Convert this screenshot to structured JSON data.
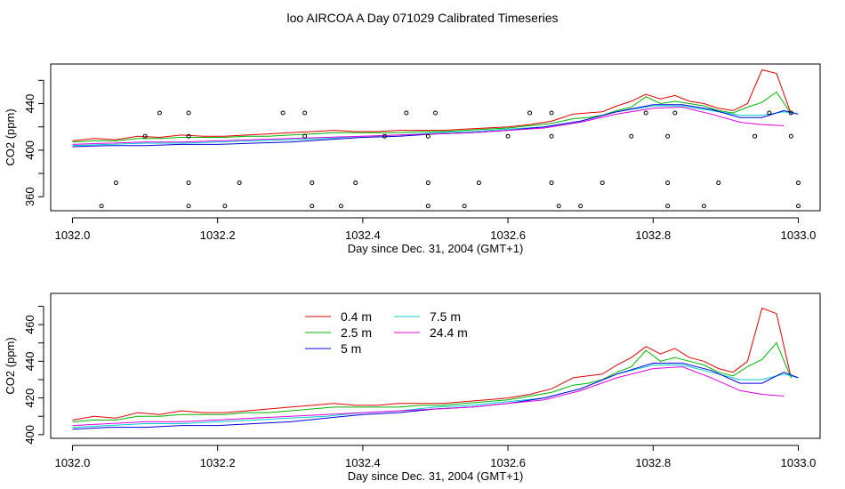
{
  "title": "loo AIRCOA A  Day 071029  Calibrated Timeseries",
  "colors": {
    "s0_4": "#e00000",
    "s2_5": "#00b400",
    "s5": "#0000dd",
    "s7_5": "#00cccc",
    "s24_4": "#dd00dd",
    "frame": "#000000"
  },
  "chart_data": [
    {
      "type": "scatter+line",
      "title": "",
      "xlabel": "Day since Dec. 31, 2004 (GMT+1)",
      "ylabel": "CO2 (ppm)",
      "xlim": [
        1031.97,
        1033.03
      ],
      "ylim": [
        348,
        474
      ],
      "xticks": [
        1032.0,
        1032.2,
        1032.4,
        1032.6,
        1032.8,
        1033.0
      ],
      "xtick_labels": [
        "1032.0",
        "1032.2",
        "1032.4",
        "1032.6",
        "1032.8",
        "1033.0"
      ],
      "yticks": [
        360,
        380,
        400,
        420,
        440,
        460
      ],
      "ytick_labels": [
        "360",
        "",
        "400",
        "",
        "440",
        ""
      ],
      "points": [
        [
          1032.04,
          352
        ],
        [
          1032.06,
          372
        ],
        [
          1032.1,
          412
        ],
        [
          1032.12,
          432
        ],
        [
          1032.16,
          352
        ],
        [
          1032.16,
          372
        ],
        [
          1032.16,
          412
        ],
        [
          1032.16,
          432
        ],
        [
          1032.21,
          352
        ],
        [
          1032.23,
          372
        ],
        [
          1032.29,
          432
        ],
        [
          1032.32,
          432
        ],
        [
          1032.32,
          412
        ],
        [
          1032.33,
          372
        ],
        [
          1032.33,
          352
        ],
        [
          1032.37,
          352
        ],
        [
          1032.39,
          372
        ],
        [
          1032.43,
          412
        ],
        [
          1032.46,
          432
        ],
        [
          1032.49,
          352
        ],
        [
          1032.49,
          372
        ],
        [
          1032.49,
          412
        ],
        [
          1032.5,
          432
        ],
        [
          1032.54,
          352
        ],
        [
          1032.56,
          372
        ],
        [
          1032.6,
          412
        ],
        [
          1032.63,
          432
        ],
        [
          1032.66,
          432
        ],
        [
          1032.66,
          412
        ],
        [
          1032.66,
          372
        ],
        [
          1032.67,
          352
        ],
        [
          1032.7,
          352
        ],
        [
          1032.73,
          372
        ],
        [
          1032.77,
          412
        ],
        [
          1032.79,
          432
        ],
        [
          1032.82,
          352
        ],
        [
          1032.82,
          372
        ],
        [
          1032.82,
          412
        ],
        [
          1032.83,
          432
        ],
        [
          1032.87,
          352
        ],
        [
          1032.89,
          372
        ],
        [
          1032.94,
          412
        ],
        [
          1032.96,
          432
        ],
        [
          1032.99,
          432
        ],
        [
          1032.99,
          412
        ],
        [
          1033.0,
          372
        ],
        [
          1033.0,
          352
        ]
      ],
      "series": [
        {
          "color_key": "s0_4",
          "x": [
            1032.0,
            1032.03,
            1032.06,
            1032.09,
            1032.12,
            1032.15,
            1032.18,
            1032.21,
            1032.24,
            1032.27,
            1032.3,
            1032.33,
            1032.36,
            1032.39,
            1032.42,
            1032.45,
            1032.48,
            1032.51,
            1032.54,
            1032.57,
            1032.6,
            1032.63,
            1032.66,
            1032.69,
            1032.71,
            1032.73,
            1032.75,
            1032.77,
            1032.79,
            1032.81,
            1032.83,
            1032.85,
            1032.87,
            1032.89,
            1032.91,
            1032.93,
            1032.95,
            1032.97,
            1032.99
          ],
          "y": [
            408,
            410,
            409,
            412,
            411,
            413,
            412,
            412,
            413,
            414,
            415,
            416,
            417,
            416,
            416,
            417,
            417,
            417,
            418,
            419,
            420,
            422,
            425,
            431,
            432,
            433,
            438,
            442,
            448,
            444,
            447,
            442,
            440,
            436,
            434,
            440,
            469,
            466,
            431
          ]
        },
        {
          "color_key": "s2_5",
          "x": [
            1032.0,
            1032.03,
            1032.06,
            1032.09,
            1032.12,
            1032.15,
            1032.18,
            1032.21,
            1032.24,
            1032.27,
            1032.3,
            1032.33,
            1032.36,
            1032.39,
            1032.42,
            1032.45,
            1032.48,
            1032.51,
            1032.54,
            1032.57,
            1032.6,
            1032.63,
            1032.66,
            1032.69,
            1032.71,
            1032.73,
            1032.75,
            1032.77,
            1032.79,
            1032.81,
            1032.83,
            1032.85,
            1032.87,
            1032.89,
            1032.91,
            1032.93,
            1032.95,
            1032.97,
            1032.99
          ],
          "y": [
            407,
            408,
            408,
            410,
            410,
            411,
            411,
            411,
            412,
            412,
            413,
            414,
            415,
            415,
            415,
            415,
            416,
            416,
            417,
            418,
            419,
            421,
            423,
            427,
            428,
            430,
            434,
            437,
            446,
            440,
            442,
            440,
            438,
            434,
            432,
            437,
            441,
            450,
            431
          ]
        },
        {
          "color_key": "s7_5",
          "x": [
            1032.0,
            1032.05,
            1032.1,
            1032.15,
            1032.2,
            1032.25,
            1032.3,
            1032.35,
            1032.4,
            1032.45,
            1032.5,
            1032.55,
            1032.6,
            1032.65,
            1032.7,
            1032.75,
            1032.8,
            1032.84,
            1032.88,
            1032.92,
            1032.95,
            1032.98,
            1033.0
          ],
          "y": [
            404,
            405,
            406,
            406,
            407,
            408,
            409,
            410,
            412,
            413,
            415,
            416,
            418,
            420,
            425,
            433,
            438,
            438,
            434,
            430,
            430,
            433,
            431
          ]
        },
        {
          "color_key": "s5",
          "x": [
            1032.0,
            1032.05,
            1032.1,
            1032.15,
            1032.2,
            1032.25,
            1032.3,
            1032.35,
            1032.4,
            1032.45,
            1032.5,
            1032.55,
            1032.6,
            1032.65,
            1032.7,
            1032.75,
            1032.8,
            1032.84,
            1032.88,
            1032.92,
            1032.95,
            1032.98,
            1033.0
          ],
          "y": [
            403,
            404,
            404,
            405,
            405,
            406,
            407,
            409,
            411,
            412,
            414,
            415,
            417,
            420,
            425,
            433,
            439,
            439,
            435,
            428,
            428,
            434,
            431
          ]
        },
        {
          "color_key": "s24_4",
          "x": [
            1032.0,
            1032.05,
            1032.1,
            1032.15,
            1032.2,
            1032.25,
            1032.3,
            1032.35,
            1032.4,
            1032.45,
            1032.5,
            1032.55,
            1032.6,
            1032.65,
            1032.7,
            1032.75,
            1032.8,
            1032.84,
            1032.88,
            1032.92,
            1032.95,
            1032.98
          ],
          "y": [
            405,
            406,
            407,
            407,
            408,
            409,
            410,
            411,
            412,
            413,
            414,
            415,
            417,
            419,
            424,
            431,
            436,
            437,
            431,
            424,
            422,
            421
          ]
        }
      ]
    },
    {
      "type": "line",
      "title": "",
      "xlabel": "Day since Dec. 31, 2004 (GMT+1)",
      "ylabel": "CO2 (ppm)",
      "xlim": [
        1031.97,
        1033.03
      ],
      "ylim": [
        398,
        477
      ],
      "xticks": [
        1032.0,
        1032.2,
        1032.4,
        1032.6,
        1032.8,
        1033.0
      ],
      "xtick_labels": [
        "1032.0",
        "1032.2",
        "1032.4",
        "1032.6",
        "1032.8",
        "1033.0"
      ],
      "yticks": [
        400,
        410,
        420,
        430,
        440,
        450,
        460,
        470
      ],
      "ytick_labels": [
        "400",
        "",
        "420",
        "",
        "440",
        "",
        "460",
        ""
      ],
      "legend": {
        "placement": "top-left",
        "entries": [
          {
            "name": "0.4 m",
            "color_key": "s0_4"
          },
          {
            "name": "2.5 m",
            "color_key": "s2_5"
          },
          {
            "name": "5 m",
            "color_key": "s5"
          },
          {
            "name": "7.5 m",
            "color_key": "s7_5"
          },
          {
            "name": "24.4 m",
            "color_key": "s24_4"
          }
        ]
      },
      "series": [
        {
          "name": "0.4 m",
          "color_key": "s0_4",
          "x": [
            1032.0,
            1032.03,
            1032.06,
            1032.09,
            1032.12,
            1032.15,
            1032.18,
            1032.21,
            1032.24,
            1032.27,
            1032.3,
            1032.33,
            1032.36,
            1032.39,
            1032.42,
            1032.45,
            1032.48,
            1032.51,
            1032.54,
            1032.57,
            1032.6,
            1032.63,
            1032.66,
            1032.69,
            1032.71,
            1032.73,
            1032.75,
            1032.77,
            1032.79,
            1032.81,
            1032.83,
            1032.85,
            1032.87,
            1032.89,
            1032.91,
            1032.93,
            1032.95,
            1032.97,
            1032.99
          ],
          "y": [
            408,
            410,
            409,
            412,
            411,
            413,
            412,
            412,
            413,
            414,
            415,
            416,
            417,
            416,
            416,
            417,
            417,
            417,
            418,
            419,
            420,
            422,
            425,
            431,
            432,
            433,
            438,
            442,
            448,
            444,
            447,
            442,
            440,
            436,
            434,
            440,
            469,
            466,
            431
          ]
        },
        {
          "name": "2.5 m",
          "color_key": "s2_5",
          "x": [
            1032.0,
            1032.03,
            1032.06,
            1032.09,
            1032.12,
            1032.15,
            1032.18,
            1032.21,
            1032.24,
            1032.27,
            1032.3,
            1032.33,
            1032.36,
            1032.39,
            1032.42,
            1032.45,
            1032.48,
            1032.51,
            1032.54,
            1032.57,
            1032.6,
            1032.63,
            1032.66,
            1032.69,
            1032.71,
            1032.73,
            1032.75,
            1032.77,
            1032.79,
            1032.81,
            1032.83,
            1032.85,
            1032.87,
            1032.89,
            1032.91,
            1032.93,
            1032.95,
            1032.97,
            1032.99
          ],
          "y": [
            407,
            408,
            408,
            410,
            410,
            411,
            411,
            411,
            412,
            412,
            413,
            414,
            415,
            415,
            415,
            415,
            416,
            416,
            417,
            418,
            419,
            421,
            423,
            427,
            428,
            430,
            434,
            437,
            446,
            440,
            442,
            440,
            438,
            434,
            432,
            437,
            441,
            450,
            431
          ]
        },
        {
          "name": "7.5 m",
          "color_key": "s7_5",
          "x": [
            1032.0,
            1032.05,
            1032.1,
            1032.15,
            1032.2,
            1032.25,
            1032.3,
            1032.35,
            1032.4,
            1032.45,
            1032.5,
            1032.55,
            1032.6,
            1032.65,
            1032.7,
            1032.75,
            1032.8,
            1032.84,
            1032.88,
            1032.92,
            1032.95,
            1032.98,
            1033.0
          ],
          "y": [
            404,
            405,
            406,
            406,
            407,
            408,
            409,
            410,
            412,
            413,
            415,
            416,
            418,
            420,
            425,
            433,
            438,
            438,
            434,
            430,
            430,
            433,
            431
          ]
        },
        {
          "name": "5 m",
          "color_key": "s5",
          "x": [
            1032.0,
            1032.05,
            1032.1,
            1032.15,
            1032.2,
            1032.25,
            1032.3,
            1032.35,
            1032.4,
            1032.45,
            1032.5,
            1032.55,
            1032.6,
            1032.65,
            1032.7,
            1032.75,
            1032.8,
            1032.84,
            1032.88,
            1032.92,
            1032.95,
            1032.98,
            1033.0
          ],
          "y": [
            403,
            404,
            404,
            405,
            405,
            406,
            407,
            409,
            411,
            412,
            414,
            415,
            417,
            420,
            425,
            433,
            439,
            439,
            435,
            428,
            428,
            434,
            431
          ]
        },
        {
          "name": "24.4 m",
          "color_key": "s24_4",
          "x": [
            1032.0,
            1032.05,
            1032.1,
            1032.15,
            1032.2,
            1032.25,
            1032.3,
            1032.35,
            1032.4,
            1032.45,
            1032.5,
            1032.55,
            1032.6,
            1032.65,
            1032.7,
            1032.75,
            1032.8,
            1032.84,
            1032.88,
            1032.92,
            1032.95,
            1032.98
          ],
          "y": [
            405,
            406,
            407,
            407,
            408,
            409,
            410,
            411,
            412,
            413,
            414,
            415,
            417,
            419,
            424,
            431,
            436,
            437,
            431,
            424,
            422,
            421
          ]
        }
      ]
    }
  ]
}
